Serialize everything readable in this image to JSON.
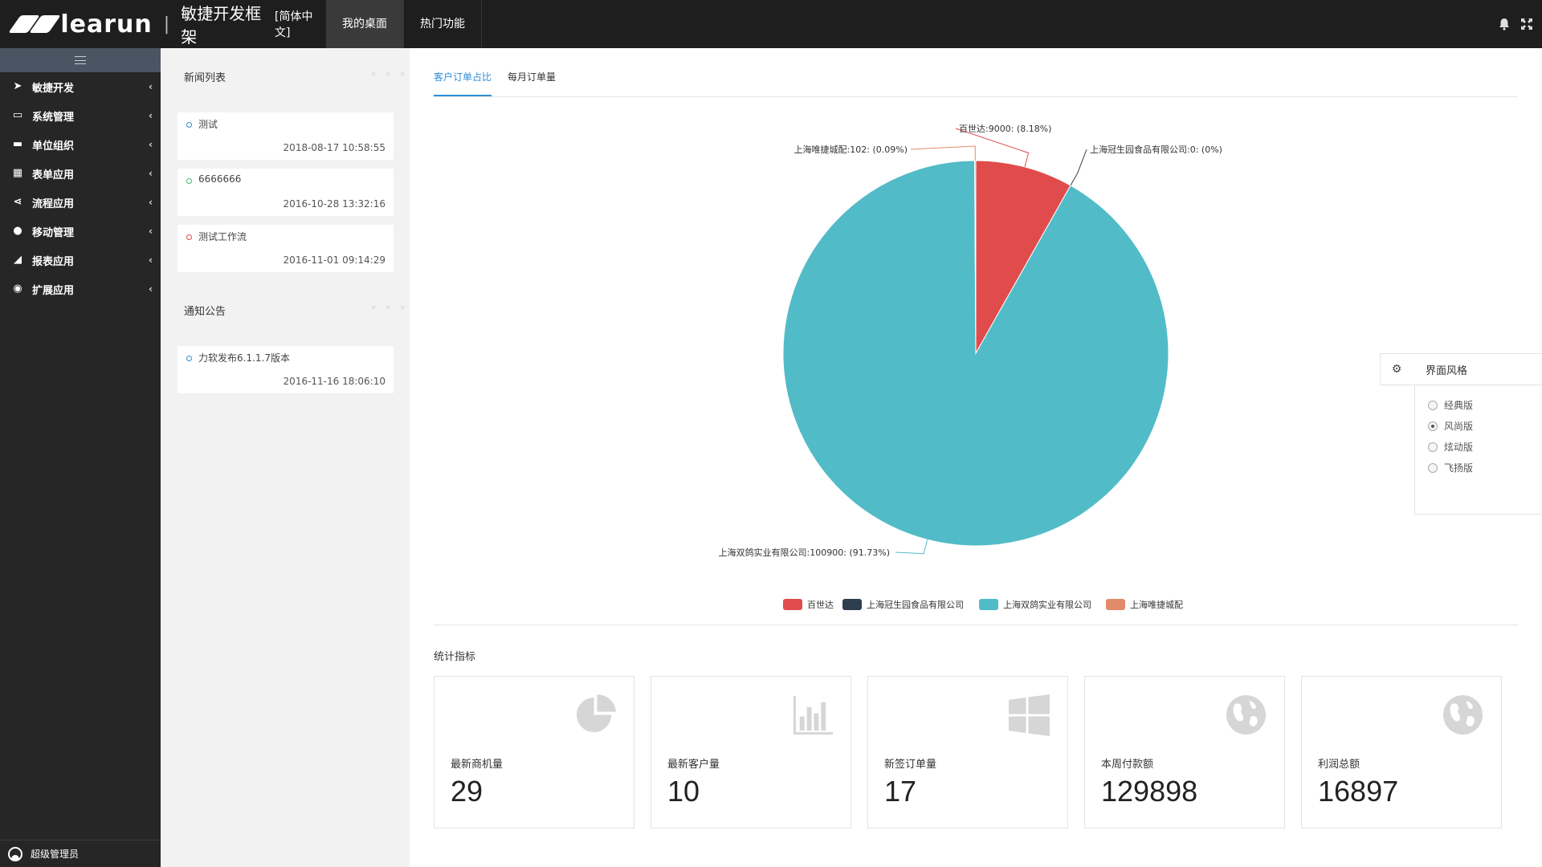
{
  "header": {
    "brand": "learun",
    "subtitle": "敏捷开发框架",
    "language": "[简体中文]",
    "nav": [
      {
        "label": "我的桌面",
        "active": true
      },
      {
        "label": "热门功能",
        "active": false
      }
    ],
    "icons": [
      "bell-icon",
      "fullscreen-icon"
    ]
  },
  "sidebar": {
    "items": [
      {
        "label": "敏捷开发",
        "icon": "paper-plane-icon"
      },
      {
        "label": "系统管理",
        "icon": "monitor-icon"
      },
      {
        "label": "单位组织",
        "icon": "coffee-icon"
      },
      {
        "label": "表单应用",
        "icon": "table-icon"
      },
      {
        "label": "流程应用",
        "icon": "share-icon"
      },
      {
        "label": "移动管理",
        "icon": "android-icon"
      },
      {
        "label": "报表应用",
        "icon": "area-chart-icon"
      },
      {
        "label": "扩展应用",
        "icon": "globe-icon"
      }
    ],
    "user": "超级管理员"
  },
  "news": {
    "title": "新闻列表",
    "more": "◦ ◦ ◦",
    "items": [
      {
        "title": "测试",
        "time": "2018-08-17 10:58:55",
        "color": "#2f8fd8"
      },
      {
        "title": "6666666",
        "time": "2016-10-28 13:32:16",
        "color": "#3dbf6a"
      },
      {
        "title": "测试工作流",
        "time": "2016-11-01 09:14:29",
        "color": "#e04848"
      }
    ]
  },
  "notices": {
    "title": "通知公告",
    "more": "◦ ◦ ◦",
    "items": [
      {
        "title": "力软发布6.1.1.7版本",
        "time": "2016-11-16 18:06:10",
        "color": "#2f8fd8"
      }
    ]
  },
  "tabs": [
    {
      "label": "客户订单占比",
      "active": true
    },
    {
      "label": "每月订单量",
      "active": false
    }
  ],
  "chart_data": {
    "type": "pie",
    "slices": [
      {
        "name": "百世达",
        "value": 9000,
        "percent": 8.18,
        "label": "百世达:9000: (8.18%)",
        "color": "#e04c4c"
      },
      {
        "name": "上海冠生园食品有限公司",
        "value": 0,
        "percent": 0,
        "label": "上海冠生园食品有限公司:0: (0%)",
        "color": "#2f3e4e"
      },
      {
        "name": "上海双鸽实业有限公司",
        "value": 100900,
        "percent": 91.73,
        "label": "上海双鸽实业有限公司:100900: (91.73%)",
        "color": "#52bbc8"
      },
      {
        "name": "上海唯捷城配",
        "value": 102,
        "percent": 0.09,
        "label": "上海唯捷城配:102: (0.09%)",
        "color": "#e38a6a"
      }
    ],
    "legend_position": "bottom"
  },
  "stats": {
    "title": "统计指标",
    "cards": [
      {
        "label": "最新商机量",
        "value": "29",
        "icon": "pie-chart-icon"
      },
      {
        "label": "最新客户量",
        "value": "10",
        "icon": "bar-chart-icon"
      },
      {
        "label": "新签订单量",
        "value": "17",
        "icon": "windows-icon"
      },
      {
        "label": "本周付款额",
        "value": "129898",
        "icon": "globe-icon"
      },
      {
        "label": "利润总额",
        "value": "16897",
        "icon": "globe-icon"
      }
    ]
  },
  "theme": {
    "title": "界面风格",
    "options": [
      {
        "label": "经典版",
        "checked": false
      },
      {
        "label": "风尚版",
        "checked": true
      },
      {
        "label": "炫动版",
        "checked": false
      },
      {
        "label": "飞扬版",
        "checked": false
      }
    ]
  }
}
